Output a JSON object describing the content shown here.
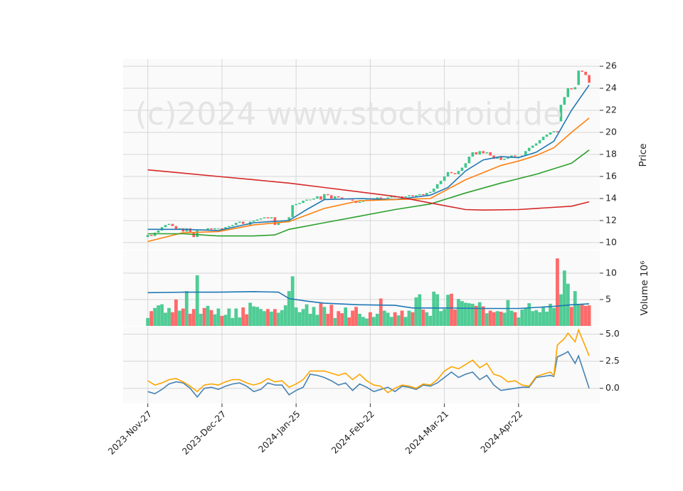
{
  "chart_data": [
    {
      "type": "candlestick",
      "watermark": "(c)2024 www.stockdroid.de",
      "ylabel": "Price",
      "ylim": [
        9.35,
        26.65
      ],
      "yticks": [
        10,
        12,
        14,
        16,
        18,
        20,
        22,
        24,
        26
      ],
      "grid": true,
      "up_color": "#3cc68a",
      "down_color": "#ff5a5a",
      "open": [
        10.5,
        10.7,
        10.6,
        10.9,
        11.1,
        11.4,
        11.6,
        11.7,
        11.5,
        11.2,
        11.3,
        11.0,
        11.3,
        10.9,
        10.5,
        11.1,
        11.2,
        11.1,
        11.3,
        11.2,
        11.3,
        11.3,
        11.2,
        11.4,
        11.5,
        11.6,
        11.8,
        11.9,
        11.7,
        11.6,
        11.9,
        12.0,
        12.1,
        12.2,
        12.3,
        12.2,
        12.3,
        11.6,
        11.8,
        11.9,
        12.0,
        12.3,
        13.4,
        13.5,
        13.6,
        13.8,
        13.9,
        13.9,
        14.0,
        14.2,
        13.9,
        14.4,
        14.3,
        14.0,
        14.2,
        14.1,
        14.0,
        14.0,
        13.9,
        13.8,
        13.6,
        13.7,
        13.8,
        13.9,
        13.8,
        14.0,
        14.1,
        14.0,
        14.0,
        14.1,
        14.2,
        14.1,
        14.2,
        14.1,
        14.2,
        14.3,
        14.2,
        14.3,
        14.4,
        14.3,
        14.5,
        14.6,
        14.9,
        15.3,
        15.6,
        16.0,
        16.4,
        16.3,
        16.2,
        16.5,
        16.8,
        17.2,
        17.8,
        18.2,
        18.0,
        18.3,
        18.1,
        18.2,
        17.9,
        17.6,
        17.8,
        17.5,
        17.6,
        17.7,
        17.9,
        17.8,
        17.8,
        17.9,
        18.3,
        18.6,
        18.8,
        19.0,
        19.3,
        19.6,
        19.8,
        20.0,
        20.1,
        21.0,
        22.5,
        23.2,
        24.0,
        23.9,
        24.3,
        25.6,
        25.5,
        25.2
      ],
      "close": [
        10.7,
        10.6,
        10.9,
        11.1,
        11.4,
        11.6,
        11.7,
        11.5,
        11.2,
        11.3,
        11.0,
        11.3,
        10.9,
        10.5,
        11.1,
        11.2,
        11.1,
        11.3,
        11.2,
        11.3,
        11.3,
        11.2,
        11.4,
        11.5,
        11.6,
        11.8,
        11.9,
        11.7,
        11.6,
        11.9,
        12.0,
        12.1,
        12.2,
        12.3,
        12.2,
        12.3,
        11.6,
        11.8,
        11.9,
        12.0,
        12.3,
        13.4,
        13.5,
        13.6,
        13.8,
        13.9,
        13.9,
        14.0,
        14.2,
        13.9,
        14.4,
        14.3,
        14.0,
        14.2,
        14.1,
        14.0,
        14.0,
        13.9,
        13.8,
        13.6,
        13.7,
        13.8,
        13.9,
        13.8,
        14.0,
        14.1,
        14.0,
        14.0,
        14.1,
        14.2,
        14.1,
        14.2,
        14.1,
        14.2,
        14.3,
        14.2,
        14.3,
        14.4,
        14.3,
        14.5,
        14.6,
        14.9,
        15.3,
        15.6,
        16.0,
        16.4,
        16.3,
        16.2,
        16.5,
        16.8,
        17.2,
        17.8,
        18.2,
        18.0,
        18.3,
        18.1,
        18.2,
        17.9,
        17.6,
        17.8,
        17.5,
        17.6,
        17.7,
        17.9,
        17.8,
        17.8,
        17.9,
        18.3,
        18.6,
        18.8,
        19.0,
        19.3,
        19.6,
        19.8,
        20.0,
        20.1,
        20.0,
        22.5,
        23.2,
        24.0,
        23.9,
        24.1,
        25.6,
        25.5,
        25.2,
        24.5
      ],
      "series": [
        {
          "color": "#1f77b4",
          "x": [
            0,
            10,
            20,
            30,
            40,
            45,
            50,
            60,
            70,
            80,
            85,
            90,
            95,
            100,
            105,
            110,
            115,
            120,
            125
          ],
          "values": [
            11.2,
            11.2,
            11.1,
            11.8,
            12.0,
            13.0,
            13.9,
            14.0,
            13.9,
            14.3,
            15.0,
            16.5,
            17.5,
            17.8,
            17.7,
            18.2,
            19.2,
            22.0,
            24.3
          ]
        },
        {
          "color": "#ff7f0e",
          "x": [
            0,
            10,
            20,
            30,
            40,
            50,
            60,
            70,
            80,
            90,
            100,
            105,
            110,
            115,
            120,
            125
          ],
          "values": [
            10.1,
            10.9,
            11.0,
            11.6,
            11.9,
            13.1,
            13.8,
            13.9,
            14.0,
            15.7,
            17.0,
            17.4,
            17.9,
            18.6,
            20.0,
            21.3
          ]
        },
        {
          "color": "#2ca02c",
          "x": [
            0,
            10,
            20,
            30,
            36,
            40,
            50,
            60,
            70,
            80,
            90,
            100,
            110,
            120,
            125
          ],
          "values": [
            10.8,
            10.8,
            10.6,
            10.6,
            10.7,
            11.2,
            11.8,
            12.4,
            13.0,
            13.5,
            14.5,
            15.4,
            16.2,
            17.2,
            18.4
          ]
        },
        {
          "color": "#d62728",
          "x": [
            0,
            10,
            20,
            30,
            40,
            50,
            60,
            70,
            80,
            90,
            95,
            105,
            110,
            120,
            125
          ],
          "values": [
            16.6,
            16.3,
            16.0,
            15.7,
            15.4,
            15.0,
            14.6,
            14.2,
            13.6,
            13.0,
            12.95,
            13.0,
            13.1,
            13.3,
            13.7
          ]
        }
      ]
    },
    {
      "type": "bar",
      "ylabel": "Volume  10⁶",
      "ylim": [
        0,
        14.3
      ],
      "yticks": [
        5,
        10
      ],
      "grid": true,
      "values": [
        1.5,
        2.8,
        3.4,
        3.9,
        4.1,
        2.5,
        3.4,
        2.6,
        5.0,
        2.9,
        3.3,
        6.6,
        2.3,
        3.2,
        9.6,
        2.3,
        3.4,
        3.8,
        3.0,
        2.2,
        3.3,
        1.9,
        2.1,
        3.3,
        1.5,
        3.3,
        1.6,
        3.5,
        2.2,
        4.4,
        3.7,
        3.6,
        3.2,
        2.8,
        3.2,
        2.7,
        3.2,
        2.5,
        3.0,
        3.9,
        6.6,
        9.4,
        3.5,
        2.6,
        3.2,
        4.1,
        2.3,
        3.6,
        2.1,
        4.3,
        3.6,
        2.3,
        4.0,
        1.5,
        2.8,
        2.4,
        3.5,
        1.6,
        2.9,
        3.6,
        2.3,
        1.7,
        1.4,
        2.6,
        1.7,
        2.3,
        5.2,
        2.9,
        2.5,
        1.7,
        2.6,
        2.0,
        2.9,
        1.7,
        2.9,
        2.6,
        5.4,
        6.0,
        3.1,
        2.6,
        1.9,
        6.5,
        6.0,
        2.8,
        3.2,
        5.9,
        6.1,
        3.1,
        5.1,
        4.7,
        4.4,
        4.3,
        4.2,
        3.8,
        4.5,
        3.7,
        2.4,
        2.9,
        2.6,
        2.8,
        2.7,
        2.5,
        4.9,
        2.9,
        2.6,
        1.6,
        3.1,
        3.4,
        4.3,
        2.8,
        3.0,
        2.6,
        3.5,
        2.7,
        4.2,
        3.4,
        12.8,
        6.0,
        10.5,
        8.0,
        3.6,
        6.6,
        4.0,
        4.1,
        3.8,
        3.9
      ],
      "series": [
        {
          "color": "#1f77b4",
          "x": [
            0,
            10,
            20,
            30,
            37,
            40,
            45,
            50,
            60,
            70,
            75,
            85,
            95,
            105,
            115,
            120,
            125
          ],
          "values": [
            6.3,
            6.4,
            6.4,
            6.5,
            6.4,
            5.2,
            4.7,
            4.3,
            4.0,
            3.9,
            3.4,
            3.4,
            3.3,
            3.3,
            3.7,
            4.0,
            4.2
          ]
        }
      ]
    },
    {
      "type": "line",
      "ylim": [
        -1.4,
        5.7
      ],
      "yticks": [
        {
          "value": 0,
          "label": "0.0"
        },
        {
          "value": 2.5,
          "label": "2.5"
        },
        {
          "value": 5,
          "label": "5.0"
        }
      ],
      "grid": true,
      "xlim": [
        -7,
        128
      ],
      "xticks": [
        {
          "value": 0,
          "label": "2023-Nov-27"
        },
        {
          "value": 21,
          "label": "2023-Dec-27"
        },
        {
          "value": 42,
          "label": "2024-Jan-25"
        },
        {
          "value": 63,
          "label": "2024-Feb-22"
        },
        {
          "value": 84,
          "label": "2024-Mar-21"
        },
        {
          "value": 105,
          "label": "2024-Apr-22"
        }
      ],
      "x": [
        0,
        2,
        4,
        6,
        8,
        10,
        12,
        14,
        16,
        18,
        20,
        22,
        24,
        26,
        28,
        30,
        32,
        34,
        36,
        38,
        40,
        42,
        44,
        46,
        48,
        50,
        52,
        54,
        56,
        58,
        60,
        62,
        64,
        66,
        68,
        70,
        72,
        74,
        76,
        78,
        80,
        82,
        84,
        86,
        88,
        90,
        92,
        94,
        96,
        98,
        100,
        102,
        104,
        106,
        108,
        110,
        112,
        114,
        115,
        116,
        118,
        119,
        121,
        122,
        125
      ],
      "series": [
        {
          "color": "#4682b4",
          "values": [
            -0.3,
            -0.5,
            -0.1,
            0.4,
            0.6,
            0.5,
            0,
            -0.8,
            0,
            0.1,
            -0.1,
            0.2,
            0.4,
            0.5,
            0.2,
            -0.3,
            -0.1,
            0.5,
            0.3,
            0.3,
            -0.6,
            -0.2,
            0.1,
            1.3,
            1.2,
            1.0,
            0.7,
            0.3,
            0.5,
            -0.2,
            0.4,
            0.1,
            -0.3,
            -0.1,
            0.1,
            -0.3,
            0.2,
            0.1,
            -0.1,
            0.3,
            0.2,
            0.5,
            1.0,
            1.5,
            1.0,
            1.3,
            1.5,
            0.8,
            1.2,
            0.3,
            -0.2,
            -0.1,
            0,
            0.1,
            0.1,
            1.0,
            1.1,
            1.2,
            1.1,
            2.9,
            3.2,
            3.4,
            2.3,
            3.0,
            0
          ]
        },
        {
          "color": "#ffa500",
          "values": [
            0.7,
            0.3,
            0.5,
            0.8,
            0.9,
            0.6,
            0.2,
            -0.3,
            0.3,
            0.4,
            0.3,
            0.6,
            0.8,
            0.8,
            0.5,
            0.3,
            0.5,
            0.9,
            0.6,
            0.7,
            0.1,
            0.4,
            0.8,
            1.6,
            1.6,
            1.6,
            1.4,
            1.2,
            1.4,
            0.8,
            1.3,
            0.7,
            0.3,
            0.2,
            -0.4,
            0,
            0.3,
            0.2,
            0,
            0.4,
            0.3,
            0.8,
            1.6,
            2.0,
            1.8,
            2.2,
            2.6,
            1.9,
            2.3,
            1.3,
            1.1,
            0.6,
            0.7,
            0.3,
            0.2,
            1.1,
            1.3,
            1.5,
            1.2,
            4.0,
            4.6,
            5.1,
            4.3,
            5.4,
            3.0
          ]
        }
      ]
    }
  ]
}
